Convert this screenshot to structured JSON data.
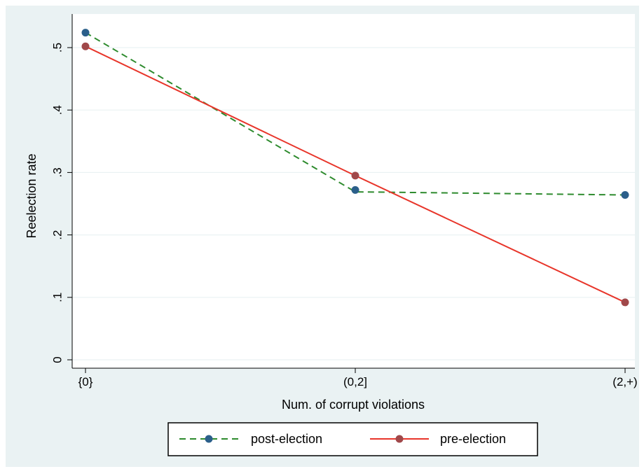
{
  "chart_data": {
    "type": "line",
    "title": "",
    "xlabel": "Num. of corrupt violations",
    "ylabel": "Reelection rate",
    "categories": [
      "{0}",
      "(0,2]",
      "(2,+)"
    ],
    "ylim": [
      0,
      0.5
    ],
    "yticks": [
      0,
      0.1,
      0.2,
      0.3,
      0.4,
      0.5
    ],
    "ytick_labels": [
      "0",
      ".1",
      ".2",
      ".3",
      ".4",
      ".5"
    ],
    "grid": true,
    "legend_position": "bottom",
    "series": [
      {
        "name": "post-election",
        "values": [
          0.524,
          0.272,
          0.264
        ],
        "line_values": [
          0.524,
          0.269,
          0.264
        ],
        "line_style": "dashed",
        "line_color": "#2e8b2e",
        "marker_color": "#2b5f8a"
      },
      {
        "name": "pre-election",
        "values": [
          0.502,
          0.295,
          0.092
        ],
        "line_values": [
          0.502,
          0.295,
          0.092
        ],
        "line_style": "solid",
        "line_color": "#e8352a",
        "marker_color": "#a0484a"
      }
    ],
    "colors": {
      "outer_background": "#eaf2f3",
      "plot_background": "#ffffff",
      "gridline": "#eaf2f3"
    }
  }
}
